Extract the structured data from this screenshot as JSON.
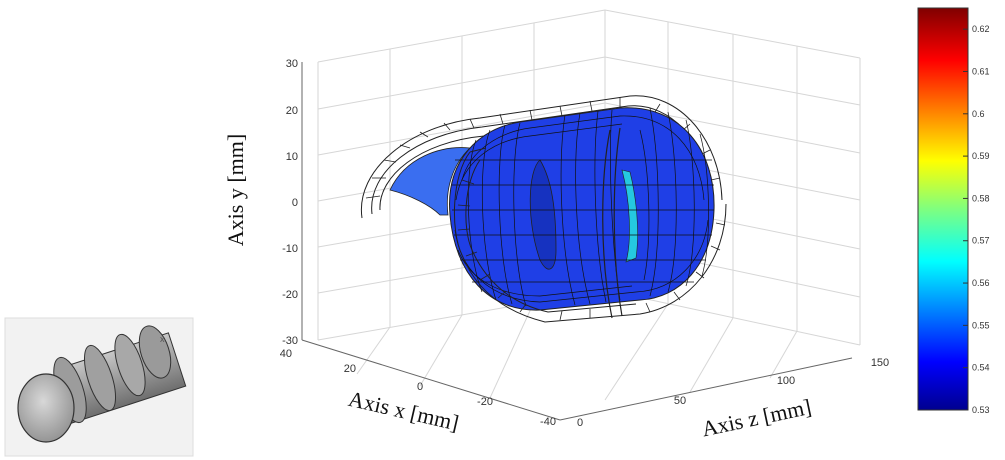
{
  "chart_data": {
    "type": "3d-surface",
    "xlabel": "Axis x [mm]",
    "ylabel": "Axis y [mm]",
    "zlabel": "Axis z  [mm]",
    "x_ticks": [
      "40",
      "20",
      "0",
      "-20",
      "-40"
    ],
    "y_ticks": [
      "30",
      "20",
      "10",
      "0",
      "-10",
      "-20",
      "-30"
    ],
    "z_ticks": [
      "0",
      "50",
      "100",
      "150"
    ],
    "xlim": [
      -40,
      40
    ],
    "ylim": [
      -30,
      30
    ],
    "zlim": [
      0,
      150
    ],
    "grid": true,
    "colorbar": {
      "ticks": [
        "0.62",
        "0.61",
        "0.6",
        "0.59",
        "0.58",
        "0.57",
        "0.56",
        "0.55",
        "0.54",
        "0.53"
      ],
      "range": [
        0.53,
        0.625
      ],
      "colormap": "jet"
    },
    "dominant_value": 0.537,
    "colors": {
      "surface_main": "#1f3fe6",
      "surface_cyan": "#25c8e0",
      "wire": "#222222",
      "gridline": "#d6d6d6"
    },
    "inset": {
      "description_icon": "3d-part-icon",
      "axis_mark": "x"
    }
  }
}
